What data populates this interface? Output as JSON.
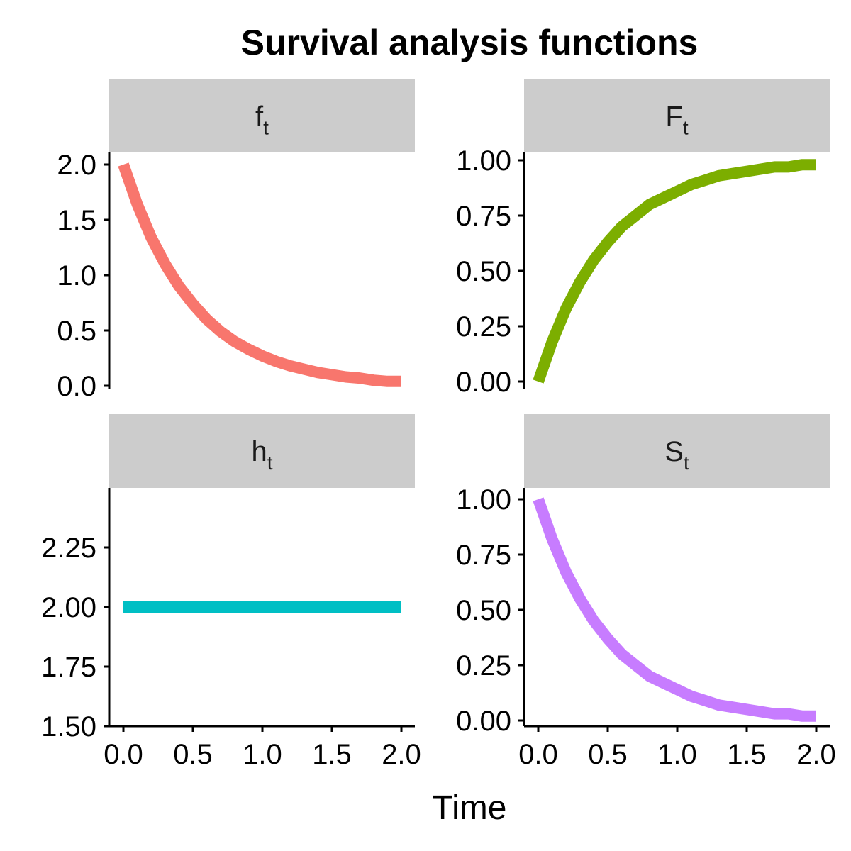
{
  "chart_data": {
    "type": "line",
    "title": "Survival analysis functions",
    "xlabel": "Time",
    "xlim": [
      0,
      2
    ],
    "xticks": [
      "0.0",
      "0.5",
      "1.0",
      "1.5",
      "2.0"
    ],
    "grid": false,
    "legend": "none",
    "panels": [
      {
        "id": "f",
        "strip_main": "f",
        "strip_sub": "t",
        "color": "#F8766D",
        "ylim": [
          0,
          2
        ],
        "yticks": [
          "0.0",
          "0.5",
          "1.0",
          "1.5",
          "2.0"
        ],
        "x": [
          0,
          0.1,
          0.2,
          0.3,
          0.4,
          0.5,
          0.6,
          0.7,
          0.8,
          0.9,
          1.0,
          1.1,
          1.2,
          1.3,
          1.4,
          1.5,
          1.6,
          1.7,
          1.8,
          1.9,
          2.0
        ],
        "y": [
          2.0,
          1.64,
          1.34,
          1.1,
          0.9,
          0.74,
          0.6,
          0.49,
          0.4,
          0.33,
          0.27,
          0.22,
          0.18,
          0.15,
          0.12,
          0.1,
          0.08,
          0.07,
          0.05,
          0.04,
          0.04
        ]
      },
      {
        "id": "F",
        "strip_main": "F",
        "strip_sub": "t",
        "color": "#7CAE00",
        "ylim": [
          0,
          1
        ],
        "yticks": [
          "0.00",
          "0.25",
          "0.50",
          "0.75",
          "1.00"
        ],
        "x": [
          0,
          0.1,
          0.2,
          0.3,
          0.4,
          0.5,
          0.6,
          0.7,
          0.8,
          0.9,
          1.0,
          1.1,
          1.2,
          1.3,
          1.4,
          1.5,
          1.6,
          1.7,
          1.8,
          1.9,
          2.0
        ],
        "y": [
          0.0,
          0.18,
          0.33,
          0.45,
          0.55,
          0.63,
          0.7,
          0.75,
          0.8,
          0.83,
          0.86,
          0.89,
          0.91,
          0.93,
          0.94,
          0.95,
          0.96,
          0.97,
          0.97,
          0.98,
          0.98
        ]
      },
      {
        "id": "h",
        "strip_main": "h",
        "strip_sub": "t",
        "color": "#00BFC4",
        "ylim": [
          1.5,
          2.5
        ],
        "yticks": [
          "1.50",
          "1.75",
          "2.00",
          "2.25"
        ],
        "x": [
          0,
          2.0
        ],
        "y": [
          2.0,
          2.0
        ]
      },
      {
        "id": "S",
        "strip_main": "S",
        "strip_sub": "t",
        "color": "#C77CFF",
        "ylim": [
          0,
          1
        ],
        "yticks": [
          "0.00",
          "0.25",
          "0.50",
          "0.75",
          "1.00"
        ],
        "x": [
          0,
          0.1,
          0.2,
          0.3,
          0.4,
          0.5,
          0.6,
          0.7,
          0.8,
          0.9,
          1.0,
          1.1,
          1.2,
          1.3,
          1.4,
          1.5,
          1.6,
          1.7,
          1.8,
          1.9,
          2.0
        ],
        "y": [
          1.0,
          0.82,
          0.67,
          0.55,
          0.45,
          0.37,
          0.3,
          0.25,
          0.2,
          0.17,
          0.14,
          0.11,
          0.09,
          0.07,
          0.06,
          0.05,
          0.04,
          0.03,
          0.03,
          0.02,
          0.02
        ]
      }
    ]
  }
}
